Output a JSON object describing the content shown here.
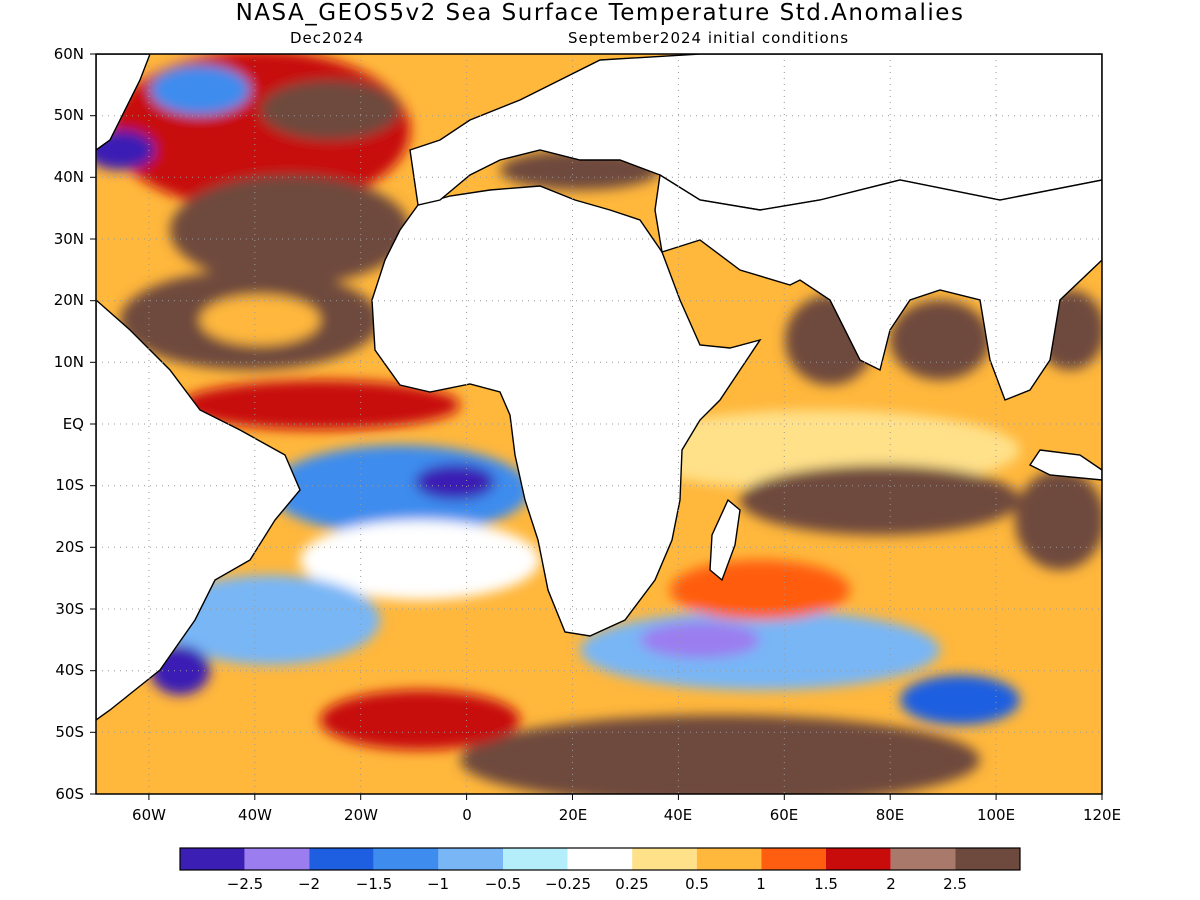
{
  "title": "NASA_GEOS5v2 Sea Surface Temperature Std.Anomalies",
  "subtitle_left": "Dec2024",
  "subtitle_right": "September2024 initial conditions",
  "lat_labels": [
    "60N",
    "50N",
    "40N",
    "30N",
    "20N",
    "10N",
    "EQ",
    "10S",
    "20S",
    "30S",
    "40S",
    "50S",
    "60S"
  ],
  "lon_labels": [
    "60W",
    "40W",
    "20W",
    "0",
    "20E",
    "40E",
    "60E",
    "80E",
    "100E",
    "120E"
  ],
  "colorbar": {
    "colors": [
      "#3b1fb4",
      "#9b7df0",
      "#1d5fe0",
      "#3d8cee",
      "#78b6f6",
      "#b4eefa",
      "#ffffff",
      "#ffe18a",
      "#ffb73c",
      "#ff5d10",
      "#c80c0c",
      "#a9796c",
      "#6e4a3e"
    ],
    "labels": [
      "−2.5",
      "−2",
      "−1.5",
      "−1",
      "−0.5",
      "−0.25",
      "0.25",
      "0.5",
      "1",
      "1.5",
      "2",
      "2.5"
    ]
  },
  "map": {
    "lat_range": [
      -60,
      60
    ],
    "lon_range": [
      -70,
      120
    ],
    "grid": "dotted",
    "land_color": "#ffffff",
    "coastline_color": "#000000"
  }
}
